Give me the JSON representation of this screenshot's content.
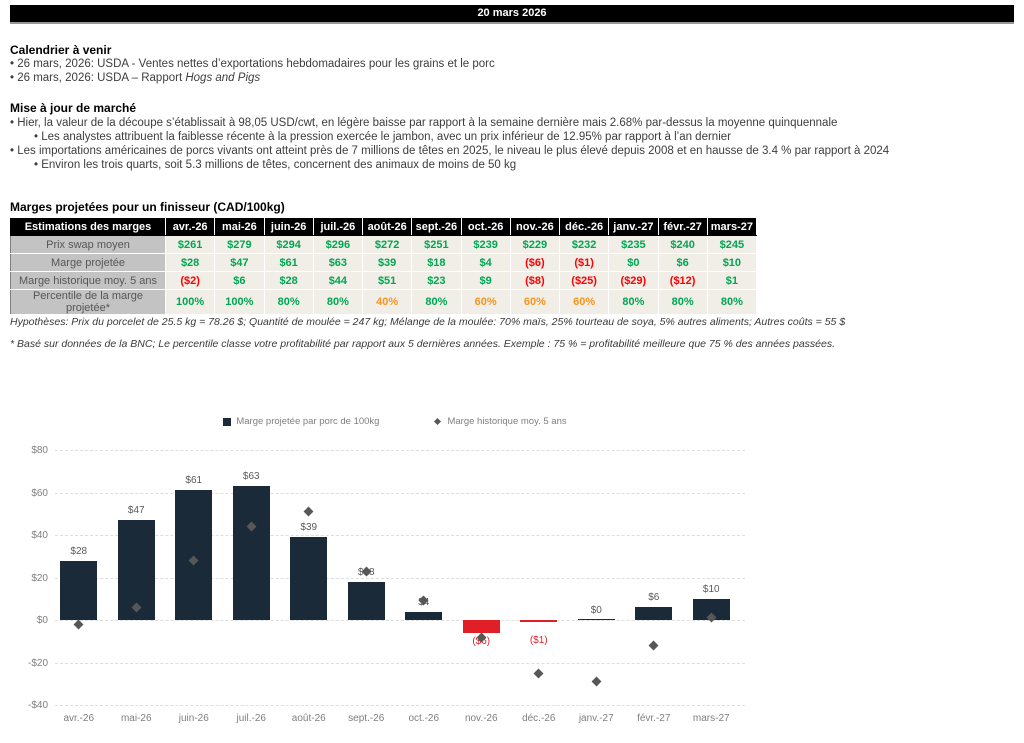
{
  "page": {
    "date_banner": "20 mars 2026"
  },
  "calendar": {
    "heading": "Calendrier à venir",
    "items": [
      {
        "level": 1,
        "text": "26 mars, 2026: USDA - Ventes nettes d’exportations hebdomadaires pour les grains et le porc",
        "italic": ""
      },
      {
        "level": 1,
        "text": "26 mars, 2026: USDA – Rapport ",
        "italic": "Hogs and Pigs"
      }
    ]
  },
  "market_update": {
    "heading": "Mise à jour de marché",
    "items": [
      {
        "level": 1,
        "text": "Hier, la valeur de la découpe s’établissait à 98,05 USD/cwt, en légère baisse par rapport à la semaine dernière mais 2.68% par-dessus la moyenne quinquennale",
        "italic": ""
      },
      {
        "level": 2,
        "text": "Les analystes attribuent la faiblesse récente à la pression exercée le jambon, avec un prix inférieur de 12.95% par rapport à l’an dernier",
        "italic": ""
      },
      {
        "level": 1,
        "text": "Les importations américaines de porcs vivants ont atteint près de 7 millions de têtes en 2025, le niveau le plus élevé depuis 2008 et en hausse de 3.4 % par rapport à 2024",
        "italic": ""
      },
      {
        "level": 2,
        "text": "Environ les trois quarts, soit 5.3 millions de têtes, concernent des animaux de moins de 50 kg",
        "italic": ""
      }
    ]
  },
  "margins_section": {
    "heading": "Marges projetées pour un finisseur (CAD/100kg)",
    "table": {
      "corner_header": "Estimations des marges",
      "months": [
        "avr.-26",
        "mai-26",
        "juin-26",
        "juil.-26",
        "août-26",
        "sept.-26",
        "oct.-26",
        "nov.-26",
        "déc.-26",
        "janv.-27",
        "févr.-27",
        "mars-27"
      ],
      "rows": [
        {
          "label": "Prix swap moyen",
          "values": [
            "$261",
            "$279",
            "$294",
            "$296",
            "$272",
            "$251",
            "$239",
            "$229",
            "$232",
            "$235",
            "$240",
            "$245"
          ],
          "tones": [
            "green",
            "green",
            "green",
            "green",
            "green",
            "green",
            "green",
            "green",
            "green",
            "green",
            "green",
            "green"
          ]
        },
        {
          "label": "Marge projetée",
          "values": [
            "$28",
            "$47",
            "$61",
            "$63",
            "$39",
            "$18",
            "$4",
            "($6)",
            "($1)",
            "$0",
            "$6",
            "$10"
          ],
          "tones": [
            "green",
            "green",
            "green",
            "green",
            "green",
            "green",
            "green",
            "red",
            "red",
            "green",
            "green",
            "green"
          ]
        },
        {
          "label": "Marge historique moy. 5 ans",
          "values": [
            "($2)",
            "$6",
            "$28",
            "$44",
            "$51",
            "$23",
            "$9",
            "($8)",
            "($25)",
            "($29)",
            "($12)",
            "$1"
          ],
          "tones": [
            "red",
            "green",
            "green",
            "green",
            "green",
            "green",
            "green",
            "red",
            "red",
            "red",
            "red",
            "green"
          ]
        },
        {
          "label": "Percentile de la marge projetée*",
          "values": [
            "100%",
            "100%",
            "80%",
            "80%",
            "40%",
            "80%",
            "60%",
            "60%",
            "60%",
            "80%",
            "80%",
            "80%"
          ],
          "tones": [
            "green",
            "green",
            "green",
            "green",
            "orange",
            "green",
            "orange",
            "orange",
            "orange",
            "green",
            "green",
            "green"
          ]
        }
      ]
    },
    "assumptions": "Hypothèses: Prix du porcelet de 25.5 kg = 78.26 $; Quantité de moulée = 247 kg; Mélange de la moulée: 70% maïs, 25% tourteau de soya, 5% autres aliments; Autres coûts = 55 $",
    "footnote": "* Basé sur données de la BNC; Le percentile classe votre profitabilité par rapport aux 5 dernières années. Exemple : 75 % = profitabilité meilleure que 75 % des années passées."
  },
  "chart_data": {
    "type": "bar",
    "title": "",
    "categories": [
      "avr.-26",
      "mai-26",
      "juin-26",
      "juil.-26",
      "août-26",
      "sept.-26",
      "oct.-26",
      "nov.-26",
      "déc.-26",
      "janv.-27",
      "févr.-27",
      "mars-27"
    ],
    "series": [
      {
        "name": "Marge projetée par porc de 100kg",
        "type": "bar",
        "values": [
          28,
          47,
          61,
          63,
          39,
          18,
          4,
          -6,
          -1,
          0,
          6,
          10
        ],
        "labels": [
          "$28",
          "$47",
          "$61",
          "$63",
          "$39",
          "$18",
          "$4",
          "($6)",
          "($1)",
          "$0",
          "$6",
          "$10"
        ]
      },
      {
        "name": "Marge historique moy. 5 ans",
        "type": "scatter",
        "marker": "diamond",
        "values": [
          -2,
          6,
          28,
          44,
          51,
          23,
          9,
          -8,
          -25,
          -29,
          -12,
          1
        ]
      }
    ],
    "ylim": [
      -40,
      80
    ],
    "ytick_values": [
      80,
      60,
      40,
      20,
      0,
      -20,
      -40
    ],
    "ytick_labels": [
      "$80",
      "$60",
      "$40",
      "$20",
      "$0",
      "-$20",
      "-$40"
    ],
    "grid": "horizontal-dashed",
    "legend_position": "top-center",
    "colors": {
      "bar_positive": "#1b2a38",
      "bar_negative": "#e11f26",
      "marker": "#575756",
      "label_positive": "#595959",
      "label_negative": "#e11f26",
      "axis_text": "#7f7f7f",
      "gridline": "#dedede"
    }
  }
}
